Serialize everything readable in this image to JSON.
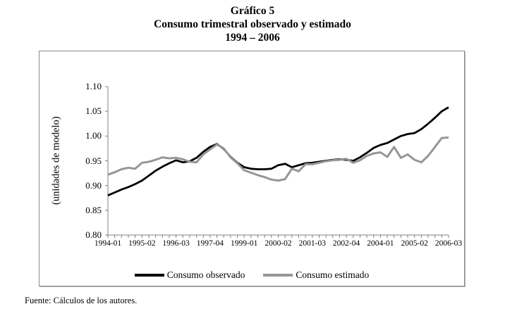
{
  "title": {
    "line1": "Gráfico 5",
    "line2": "Consumo trimestral observado y estimado",
    "line3": "1994 – 2006"
  },
  "footer": {
    "source": "Fuente: Cálculos de los autores."
  },
  "chart_data": {
    "type": "line",
    "title": "Gráfico 5 — Consumo trimestral observado y estimado 1994 – 2006",
    "ylabel": "(unidades de modelo)",
    "ylim": [
      0.8,
      1.1
    ],
    "ytick_labels": [
      "1.10",
      "1.05",
      "1.00",
      "0.95",
      "0.90",
      "0.85",
      "0.80"
    ],
    "ytick_values": [
      1.1,
      1.05,
      1.0,
      0.95,
      0.9,
      0.85,
      0.8
    ],
    "x_start": "1994-01",
    "x_frequency": "quarterly",
    "n_points": 51,
    "xtick_labels": [
      "1994-01",
      "1995-02",
      "1996-03",
      "1997-04",
      "1999-01",
      "2000-02",
      "2001-03",
      "2002-04",
      "2004-01",
      "2005-02",
      "2006-03"
    ],
    "xtick_indices": [
      0,
      5,
      10,
      15,
      20,
      25,
      30,
      35,
      40,
      45,
      50
    ],
    "grid": false,
    "legend_position": "bottom-center",
    "axis_color": "#808080",
    "legend": [
      {
        "label": "Consumo observado",
        "color": "#000000"
      },
      {
        "label": "Consumo estimado",
        "color": "#969696"
      }
    ],
    "series": [
      {
        "name": "Consumo observado",
        "color": "#000000",
        "values": [
          0.88,
          0.886,
          0.892,
          0.897,
          0.903,
          0.91,
          0.92,
          0.93,
          0.938,
          0.945,
          0.951,
          0.947,
          0.949,
          0.956,
          0.968,
          0.978,
          0.984,
          0.974,
          0.958,
          0.946,
          0.937,
          0.934,
          0.933,
          0.933,
          0.934,
          0.941,
          0.944,
          0.937,
          0.941,
          0.945,
          0.946,
          0.948,
          0.95,
          0.952,
          0.953,
          0.952,
          0.95,
          0.957,
          0.966,
          0.976,
          0.982,
          0.986,
          0.993,
          1.0,
          1.004,
          1.006,
          1.014,
          1.025,
          1.037,
          1.05,
          1.058
        ]
      },
      {
        "name": "Consumo estimado",
        "color": "#969696",
        "values": [
          0.922,
          0.927,
          0.933,
          0.936,
          0.934,
          0.946,
          0.948,
          0.952,
          0.957,
          0.955,
          0.956,
          0.953,
          0.948,
          0.947,
          0.963,
          0.973,
          0.983,
          0.975,
          0.957,
          0.945,
          0.931,
          0.926,
          0.921,
          0.917,
          0.912,
          0.91,
          0.913,
          0.934,
          0.929,
          0.943,
          0.943,
          0.946,
          0.949,
          0.951,
          0.952,
          0.954,
          0.946,
          0.951,
          0.96,
          0.965,
          0.967,
          0.958,
          0.978,
          0.956,
          0.963,
          0.952,
          0.947,
          0.96,
          0.978,
          0.996,
          0.997
        ]
      }
    ]
  }
}
